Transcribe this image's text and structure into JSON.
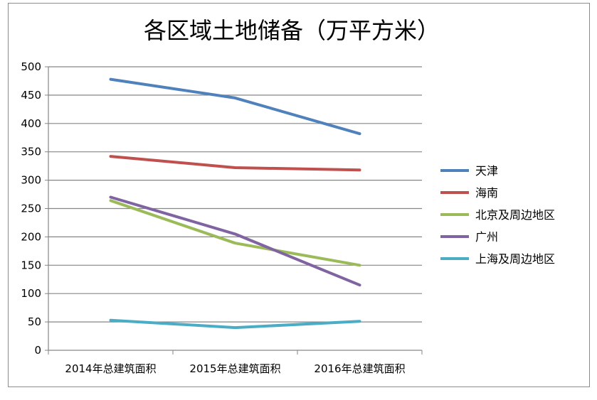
{
  "chart_data": {
    "type": "line",
    "title": "各区域土地储备（万平方米）",
    "categories": [
      "2014年总建筑面积",
      "2015年总建筑面积",
      "2016年总建筑面积"
    ],
    "ylim": [
      0,
      500
    ],
    "yticks": [
      0,
      50,
      100,
      150,
      200,
      250,
      300,
      350,
      400,
      450,
      500
    ],
    "grid": true,
    "legend_position": "right",
    "series": [
      {
        "name": "天津",
        "color": "#4F81BD",
        "values": [
          478,
          445,
          382
        ]
      },
      {
        "name": "海南",
        "color": "#C0504D",
        "values": [
          342,
          322,
          318
        ]
      },
      {
        "name": "北京及周边地区",
        "color": "#9BBB59",
        "values": [
          264,
          189,
          150
        ]
      },
      {
        "name": "广州",
        "color": "#8064A2",
        "values": [
          270,
          205,
          115
        ]
      },
      {
        "name": "上海及周边地区",
        "color": "#4BACC6",
        "values": [
          53,
          40,
          51
        ]
      }
    ]
  }
}
